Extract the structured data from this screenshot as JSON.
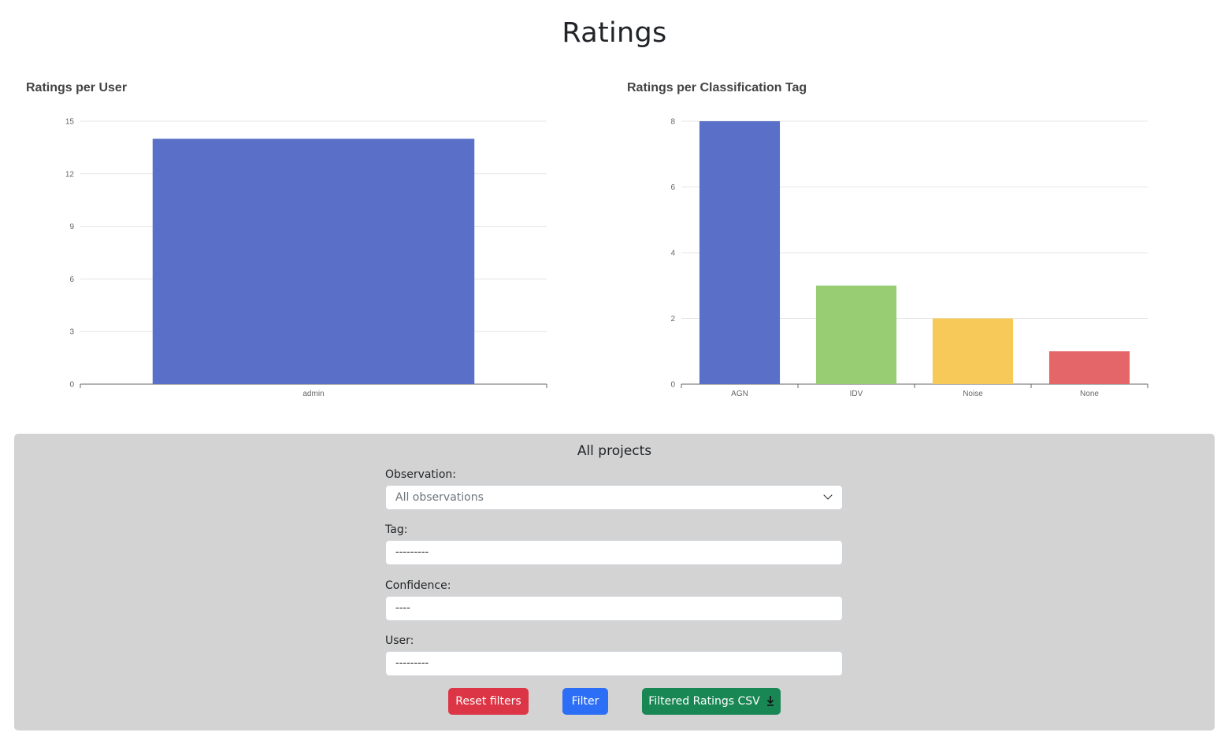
{
  "page": {
    "title": "Ratings"
  },
  "charts": {
    "user_chart_title": "Ratings per User",
    "tag_chart_title": "Ratings per Classification Tag"
  },
  "chart_data": [
    {
      "type": "bar",
      "title": "Ratings per User",
      "categories": [
        "admin"
      ],
      "values": [
        14
      ],
      "ylim": [
        0,
        15
      ],
      "yticks": [
        0,
        3,
        6,
        9,
        12,
        15
      ],
      "colors": [
        "#5a6fc7"
      ],
      "grid": true
    },
    {
      "type": "bar",
      "title": "Ratings per Classification Tag",
      "categories": [
        "AGN",
        "IDV",
        "Noise",
        "None"
      ],
      "values": [
        8,
        3,
        2,
        1
      ],
      "ylim": [
        0,
        8
      ],
      "yticks": [
        0,
        2,
        4,
        6,
        8
      ],
      "colors": [
        "#5a6fc7",
        "#98cd73",
        "#f6c958",
        "#e56668"
      ],
      "grid": true
    }
  ],
  "filters": {
    "panel_title": "All projects",
    "observation": {
      "label": "Observation:",
      "value": "All observations"
    },
    "tag": {
      "label": "Tag:",
      "value": "---------"
    },
    "confidence": {
      "label": "Confidence:",
      "value": "----"
    },
    "user": {
      "label": "User:",
      "value": "---------"
    },
    "buttons": {
      "reset": "Reset filters",
      "filter": "Filter",
      "csv": "Filtered Ratings CSV"
    },
    "icons": {
      "csv": "download-icon",
      "observation": "chevron-down-icon"
    },
    "colors": {
      "reset": "#dc3545",
      "filter": "#2c6ef6",
      "csv": "#198754",
      "panel": "#d3d3d3"
    }
  }
}
